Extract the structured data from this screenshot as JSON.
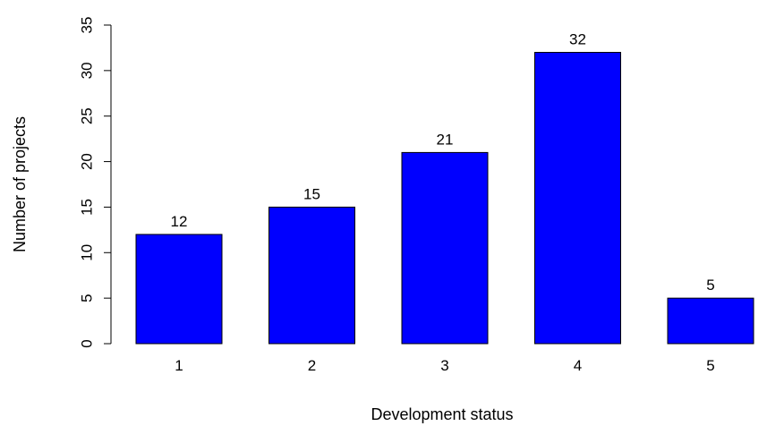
{
  "chart_data": {
    "type": "bar",
    "title": "",
    "xlabel": "Development status",
    "ylabel": "Number of projects",
    "categories": [
      "1",
      "2",
      "3",
      "4",
      "5"
    ],
    "values": [
      12,
      15,
      21,
      32,
      5
    ],
    "data_labels": [
      "12",
      "15",
      "21",
      "32",
      "5"
    ],
    "ylim": [
      0,
      35
    ],
    "yticks": [
      0,
      5,
      10,
      15,
      20,
      25,
      30,
      35
    ],
    "ytick_labels": [
      "0",
      "5",
      "10",
      "15",
      "20",
      "25",
      "30",
      "35"
    ],
    "grid": false,
    "bar_color": "#0000ff",
    "bar_edge_color": "#000000",
    "legend": "none"
  }
}
